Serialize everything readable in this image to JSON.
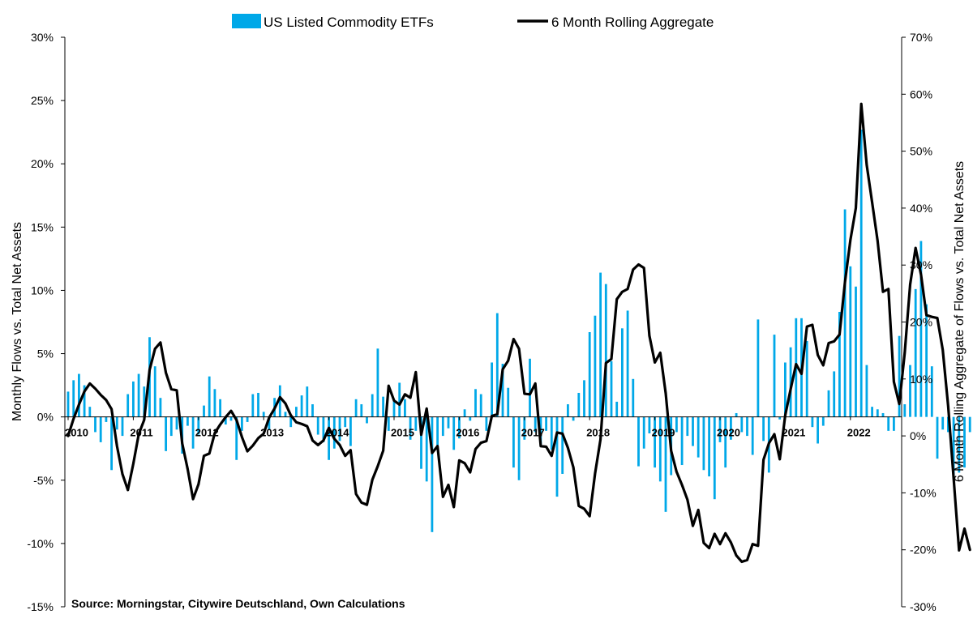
{
  "chart_data": {
    "type": "bar+line",
    "title": "",
    "legend": {
      "placement": "top-center",
      "entries": [
        "US Listed Commodity ETFs",
        "6 Month Rolling Aggregate"
      ]
    },
    "source": "Source: Morningstar, Citywire Deutschland, Own Calculations",
    "ylabel_left": "Monthly Flows vs. Total Net Assets",
    "ylabel_right": "6 Month Rolling Aggregate of Flows vs. Total Net Assets",
    "ylim_left": [
      -15,
      30
    ],
    "ylim_right": [
      -30,
      70
    ],
    "yticks_left": [
      "30%",
      "25%",
      "20%",
      "15%",
      "10%",
      "5%",
      "0%",
      "-5%",
      "-10%",
      "-15%"
    ],
    "yticks_right": [
      "70%",
      "60%",
      "50%",
      "40%",
      "30%",
      "20%",
      "10%",
      "0%",
      "-10%",
      "-20%",
      "-30%"
    ],
    "year_labels": [
      "2010",
      "2011",
      "2012",
      "2013",
      "2014",
      "2015",
      "2016",
      "2017",
      "2018",
      "2019",
      "2020",
      "2021",
      "2022"
    ],
    "start_year": 2010,
    "grid": false,
    "colors": {
      "bars": "#00a8e8",
      "line": "#000000",
      "axis": "#000000"
    },
    "series": [
      {
        "name": "US Listed Commodity ETFs",
        "type": "bar",
        "axis": "left",
        "values": [
          2.0,
          2.9,
          3.4,
          2.5,
          0.8,
          -1.2,
          -2.0,
          -0.4,
          -4.2,
          -1.0,
          -1.5,
          1.8,
          2.8,
          3.4,
          2.4,
          6.3,
          4.0,
          1.5,
          -2.7,
          -1.5,
          -1.0,
          -2.9,
          -0.7,
          -2.5,
          -1.4,
          0.9,
          3.2,
          2.2,
          1.4,
          -0.6,
          -0.3,
          -3.4,
          -1.1,
          -0.4,
          1.8,
          1.9,
          0.4,
          -1.0,
          1.5,
          2.5,
          0.4,
          -0.8,
          0.8,
          1.7,
          2.4,
          1.0,
          -1.4,
          -2.0,
          -3.4,
          -2.5,
          -1.9,
          -0.8,
          -2.3,
          1.4,
          1.0,
          -0.5,
          1.8,
          5.4,
          1.6,
          -1.1,
          1.4,
          2.7,
          1.4,
          -1.8,
          -1.1,
          -4.1,
          -5.1,
          -9.1,
          -2.3,
          -1.5,
          -0.9,
          -2.6,
          -1.7,
          0.6,
          -0.3,
          2.2,
          1.8,
          -1.1,
          4.3,
          8.2,
          4.2,
          2.3,
          -4.0,
          -5.0,
          -1.8,
          4.6,
          -1.2,
          -2.2,
          -1.1,
          -2.6,
          -6.3,
          -4.5,
          1.0,
          -0.3,
          1.9,
          2.9,
          6.7,
          8.0,
          11.4,
          10.5,
          4.4,
          1.2,
          7.0,
          8.4,
          3.0,
          -3.9,
          -2.5,
          -1.3,
          -4.0,
          -5.1,
          -7.5,
          -4.6,
          -1.2,
          -3.8,
          -1.5,
          -2.3,
          -3.2,
          -4.2,
          -4.7,
          -6.5,
          -2.0,
          -4.0,
          -1.8,
          0.3,
          -1.2,
          -1.5,
          -3.0,
          7.7,
          -1.9,
          -4.4,
          6.5,
          -0.2,
          4.3,
          5.5,
          7.8,
          7.8,
          6.0,
          -0.8,
          -2.1,
          -0.7,
          2.1,
          3.6,
          8.3,
          16.4,
          11.9,
          10.3,
          22.7,
          4.1,
          0.8,
          0.6,
          0.3,
          -1.1,
          -1.1,
          6.4,
          1.0,
          4.1,
          10.1,
          13.9,
          8.9,
          4.0,
          -3.3,
          -1.0,
          -1.2,
          -4.6,
          -4.4,
          -4.0,
          -1.2,
          -0.9,
          -4.8
        ]
      },
      {
        "name": "6 Month Rolling Aggregate",
        "type": "line",
        "axis": "right",
        "values": [
          0.0,
          3.0,
          5.5,
          7.8,
          9.2,
          8.3,
          7.2,
          6.3,
          4.7,
          -1.8,
          -6.7,
          -9.5,
          -4.9,
          0.3,
          2.8,
          11.6,
          15.3,
          16.4,
          11.1,
          8.2,
          8.0,
          -1.3,
          -5.8,
          -11.1,
          -8.5,
          -3.5,
          -3.1,
          0.5,
          2.0,
          3.3,
          4.4,
          2.8,
          -0.2,
          -2.7,
          -1.7,
          -0.4,
          0.4,
          3.2,
          4.8,
          6.8,
          5.7,
          3.6,
          2.4,
          2.1,
          1.7,
          -0.8,
          -1.6,
          -0.8,
          1.4,
          -0.5,
          -1.6,
          -3.5,
          -2.5,
          -10.2,
          -11.7,
          -12.1,
          -7.7,
          -5.3,
          -2.6,
          8.8,
          6.2,
          5.5,
          7.3,
          6.7,
          11.2,
          0.2,
          4.8,
          -3.0,
          -1.8,
          -10.7,
          -8.6,
          -12.5,
          -4.3,
          -4.8,
          -6.4,
          -2.3,
          -1.2,
          -0.9,
          3.5,
          3.8,
          11.7,
          13.2,
          17.0,
          15.3,
          7.4,
          7.3,
          9.2,
          -1.8,
          -1.9,
          -3.5,
          0.6,
          0.4,
          -2.1,
          -5.5,
          -12.3,
          -12.8,
          -14.1,
          -6.6,
          -0.6,
          12.8,
          13.5,
          24.0,
          25.3,
          25.8,
          29.2,
          30.1,
          29.5,
          17.6,
          12.9,
          14.6,
          7.5,
          -2.6,
          -6.3,
          -8.6,
          -11.2,
          -15.8,
          -13.0,
          -18.8,
          -19.7,
          -17.2,
          -19.0,
          -17.1,
          -18.7,
          -21.0,
          -22.1,
          -21.8,
          -19.0,
          -19.3,
          -4.2,
          -1.3,
          0.3,
          -4.1,
          3.6,
          8.2,
          12.6,
          10.9,
          19.2,
          19.5,
          14.2,
          12.4,
          16.3,
          16.6,
          17.8,
          27.0,
          34.4,
          40.0,
          58.3,
          47.6,
          41.0,
          34.3,
          25.3,
          25.8,
          9.5,
          5.6,
          14.6,
          26.6,
          33.0,
          28.3,
          21.2,
          20.9,
          20.7,
          15.1,
          5.2,
          -7.4,
          -20.1,
          -16.3,
          -20.0
        ]
      }
    ]
  }
}
